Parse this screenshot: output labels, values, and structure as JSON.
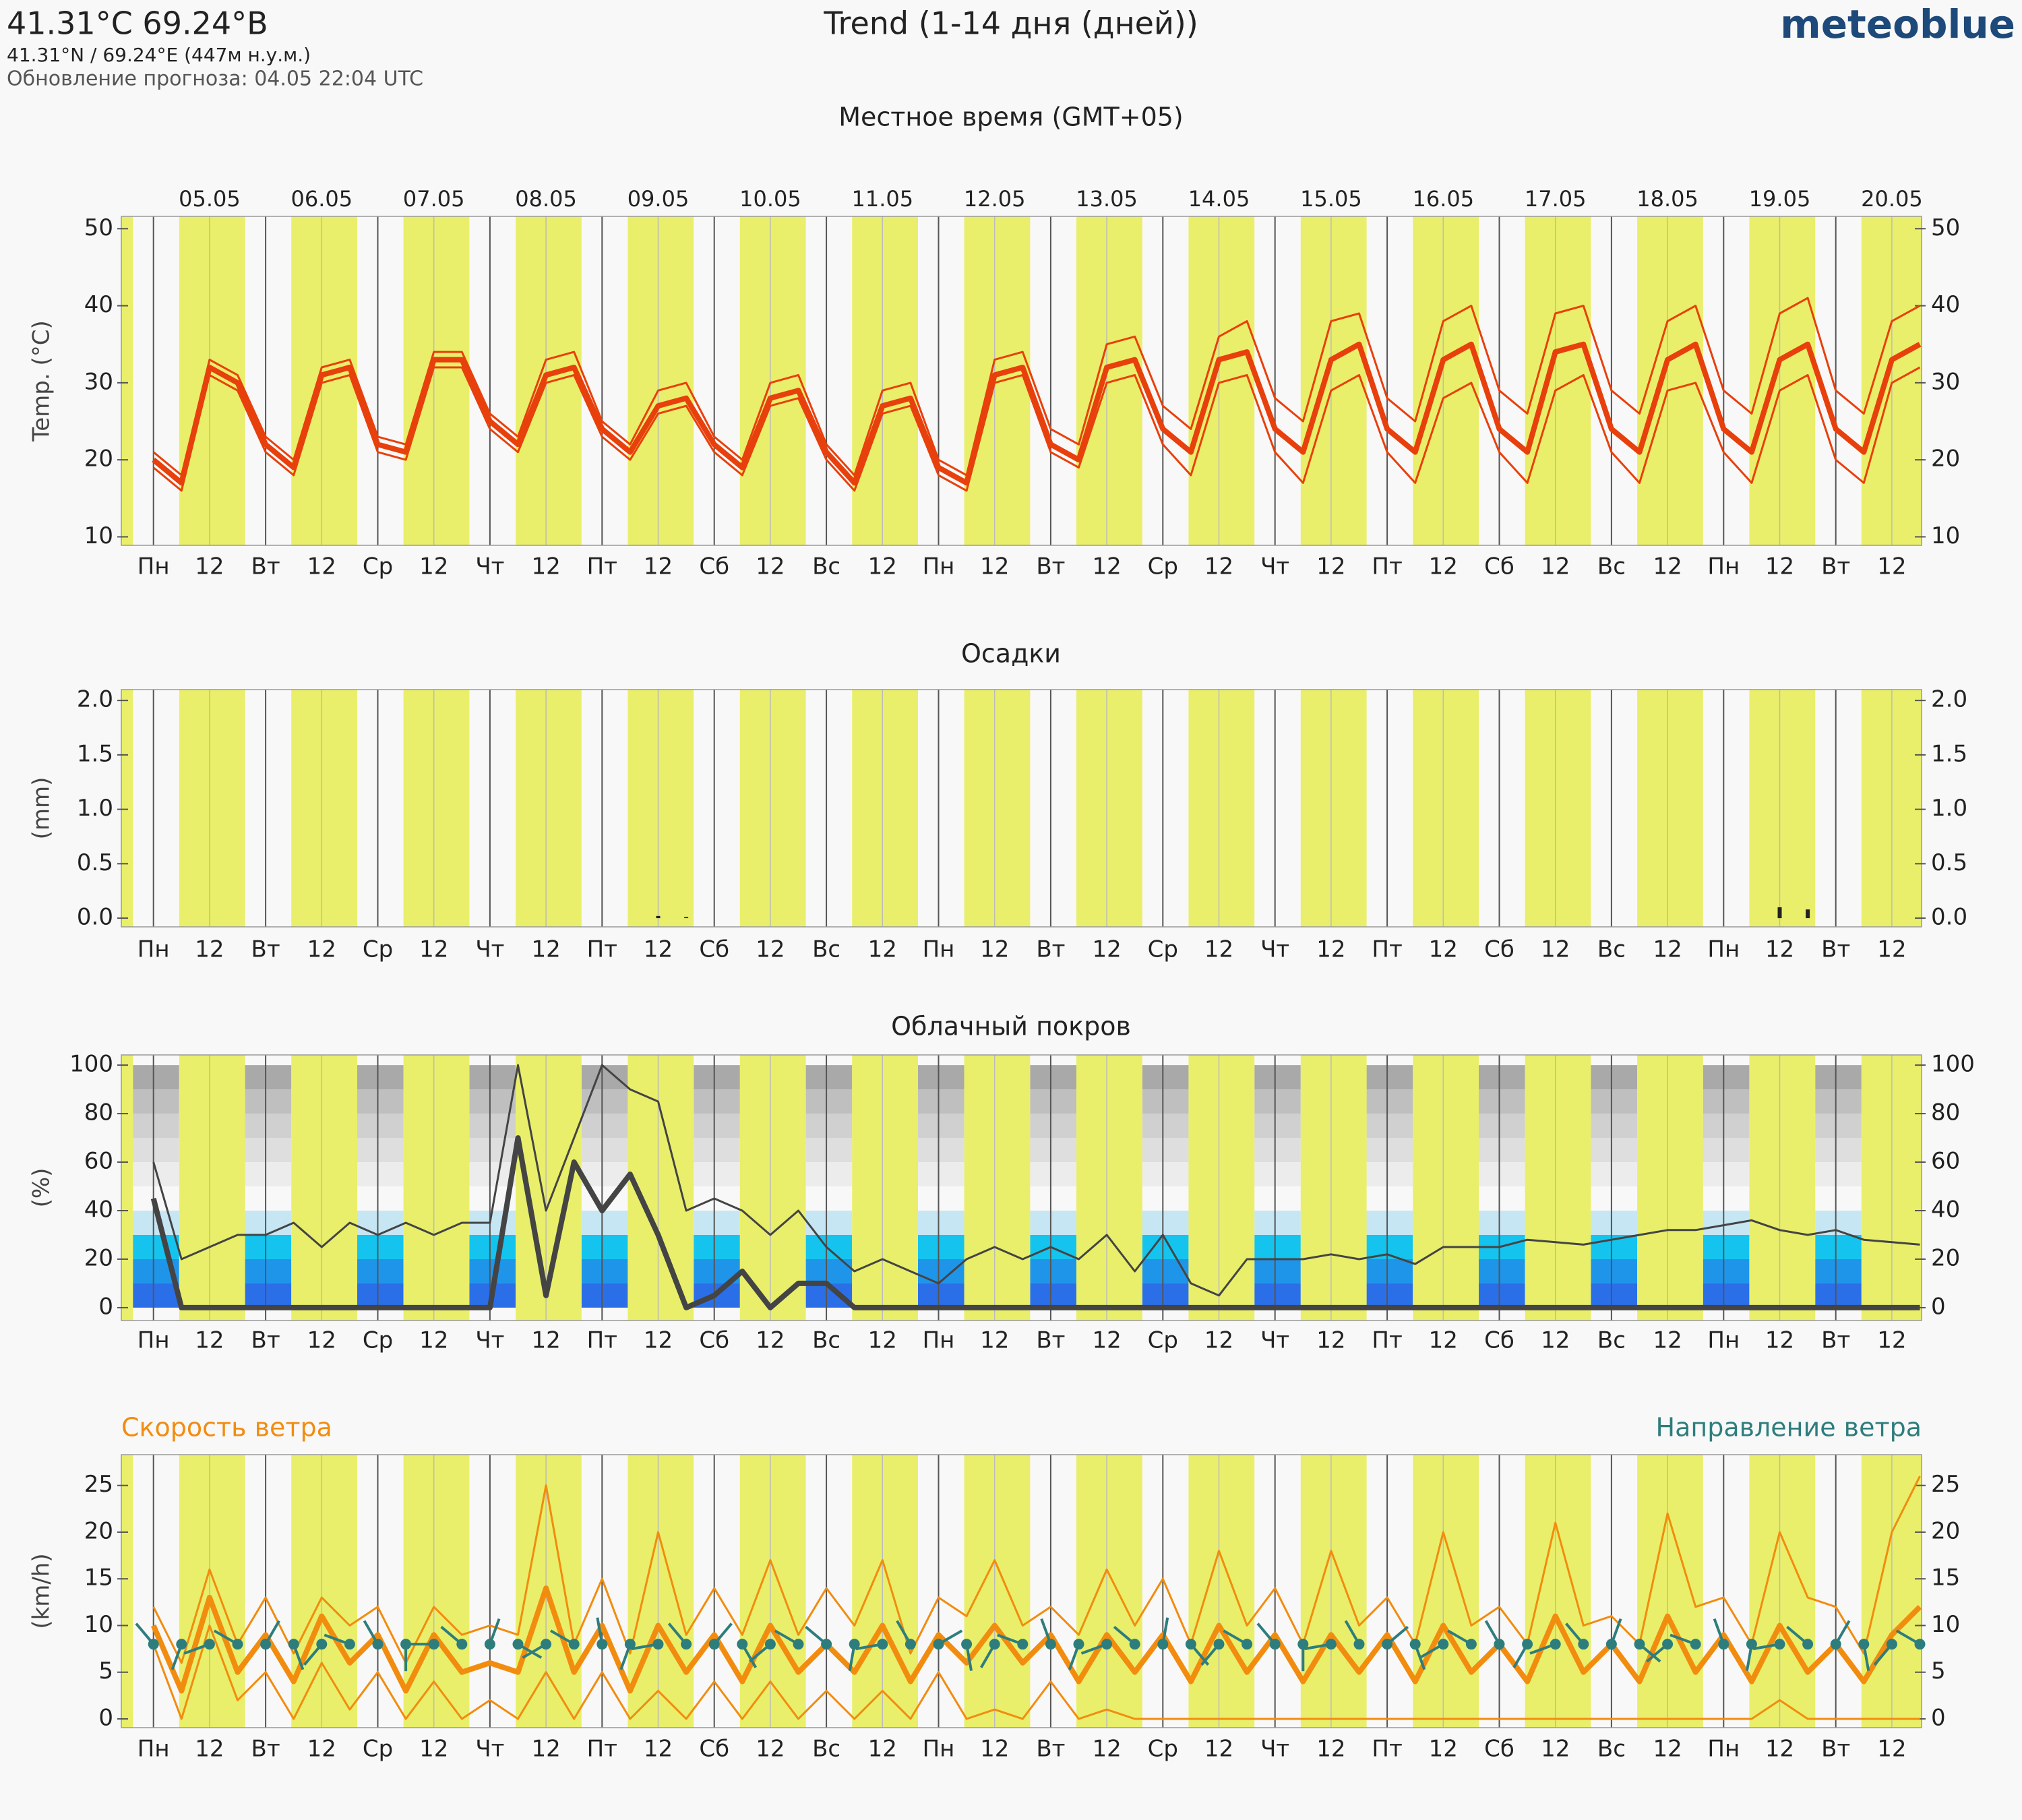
{
  "header": {
    "location": "41.31°С 69.24°В",
    "coords": "41.31°N / 69.24°E (447м н.у.м.)",
    "updated": "Обновление прогноза: 04.05 22:04 UTC",
    "title": "Trend (1-14 дня (дней))",
    "brand": "meteoblue"
  },
  "chart_data": [
    {
      "type": "line",
      "title": "Местное время (GMT+05)",
      "ylabel": "Temp. (°C)",
      "dates": [
        "05.05",
        "06.05",
        "07.05",
        "08.05",
        "09.05",
        "10.05",
        "11.05",
        "12.05",
        "13.05",
        "14.05",
        "15.05",
        "16.05",
        "17.05",
        "18.05",
        "19.05",
        "20.05"
      ],
      "categories": [
        "Пн",
        null,
        "12",
        null,
        "Вт",
        null,
        "12",
        null,
        "Ср",
        null,
        "12",
        null,
        "Чт",
        null,
        "12",
        null,
        "Пт",
        null,
        "12",
        null,
        "Сб",
        null,
        "12",
        null,
        "Вс",
        null,
        "12",
        null,
        "Пн",
        null,
        "12",
        null,
        "Вт",
        null,
        "12",
        null,
        "Ср",
        null,
        "12",
        null,
        "Чт",
        null,
        "12",
        null,
        "Пт",
        null,
        "12",
        null,
        "Сб",
        null,
        "12",
        null,
        "Вс",
        null,
        "12",
        null,
        "Пн",
        null,
        "12",
        null,
        "Вт",
        null,
        "12",
        null
      ],
      "ylim": [
        8.9,
        51.6
      ],
      "yticks": [
        10,
        20,
        30,
        40,
        50
      ],
      "series": [
        {
          "color": "#e8400c",
          "values": [
            20,
            17,
            32,
            30,
            22,
            19,
            31,
            32,
            22,
            21,
            33,
            33,
            25,
            22,
            31,
            32,
            24,
            21,
            27,
            28,
            22,
            19,
            28,
            29,
            21,
            17,
            27,
            28,
            19,
            17,
            31,
            32,
            22,
            20,
            32,
            33,
            24,
            21,
            33,
            34,
            24,
            21,
            33,
            35,
            24,
            21,
            33,
            35,
            24,
            21,
            34,
            35,
            24,
            21,
            33,
            35,
            24,
            21,
            33,
            35,
            24,
            21,
            33,
            35
          ]
        },
        {
          "color": "#e8400c",
          "values": [
            21,
            18,
            33,
            31,
            23,
            20,
            32,
            33,
            23,
            22,
            34,
            34,
            26,
            23,
            33,
            34,
            25,
            22,
            29,
            30,
            23,
            20,
            30,
            31,
            22,
            18,
            29,
            30,
            20,
            18,
            33,
            34,
            24,
            22,
            35,
            36,
            27,
            24,
            36,
            38,
            28,
            25,
            38,
            39,
            28,
            25,
            38,
            40,
            29,
            26,
            39,
            40,
            29,
            26,
            38,
            40,
            29,
            26,
            39,
            41,
            29,
            26,
            38,
            40
          ]
        },
        {
          "color": "#e8400c",
          "values": [
            19,
            16,
            31,
            29,
            21,
            18,
            30,
            31,
            21,
            20,
            32,
            32,
            24,
            21,
            30,
            31,
            23,
            20,
            26,
            27,
            21,
            18,
            27,
            28,
            20,
            16,
            26,
            27,
            18,
            16,
            30,
            31,
            21,
            19,
            30,
            31,
            22,
            18,
            30,
            31,
            21,
            17,
            29,
            31,
            21,
            17,
            28,
            30,
            21,
            17,
            29,
            31,
            21,
            17,
            29,
            30,
            21,
            17,
            29,
            31,
            20,
            17,
            30,
            32
          ]
        }
      ]
    },
    {
      "type": "bar",
      "title": "Осадки",
      "ylabel": "(mm)",
      "color": "#222222",
      "categories": [
        "Пн",
        null,
        "12",
        null,
        "Вт",
        null,
        "12",
        null,
        "Ср",
        null,
        "12",
        null,
        "Чт",
        null,
        "12",
        null,
        "Пт",
        null,
        "12",
        null,
        "Сб",
        null,
        "12",
        null,
        "Вс",
        null,
        "12",
        null,
        "Пн",
        null,
        "12",
        null,
        "Вт",
        null,
        "12",
        null,
        "Ср",
        null,
        "12",
        null,
        "Чт",
        null,
        "12",
        null,
        "Пт",
        null,
        "12",
        null,
        "Сб",
        null,
        "12",
        null,
        "Вс",
        null,
        "12",
        null,
        "Пн",
        null,
        "12",
        null,
        "Вт",
        null,
        "12",
        null
      ],
      "ylim": [
        -0.08,
        2.1
      ],
      "yticks": [
        {
          "value": 0,
          "label": "0.0"
        },
        0.5,
        {
          "value": 1,
          "label": "1.0"
        },
        1.5,
        {
          "value": 2,
          "label": "2.0"
        }
      ],
      "values": [
        0,
        0,
        0,
        0,
        0,
        0,
        0,
        0,
        0,
        0,
        0,
        0,
        0,
        0,
        0,
        0,
        0,
        0,
        0.02,
        0.01,
        0,
        0,
        0,
        0,
        0,
        0,
        0,
        0,
        0,
        0,
        0,
        0,
        0,
        0,
        0,
        0,
        0,
        0,
        0,
        0,
        0,
        0,
        0,
        0,
        0,
        0,
        0,
        0,
        0,
        0,
        0,
        0,
        0,
        0,
        0,
        0,
        0,
        0,
        0.1,
        0.08,
        0,
        0,
        0,
        0
      ]
    },
    {
      "type": "line",
      "title": "Облачный покров",
      "ylabel": "(%)",
      "categories": [
        "Пн",
        null,
        "12",
        null,
        "Вт",
        null,
        "12",
        null,
        "Ср",
        null,
        "12",
        null,
        "Чт",
        null,
        "12",
        null,
        "Пт",
        null,
        "12",
        null,
        "Сб",
        null,
        "12",
        null,
        "Вс",
        null,
        "12",
        null,
        "Пн",
        null,
        "12",
        null,
        "Вт",
        null,
        "12",
        null,
        "Ср",
        null,
        "12",
        null,
        "Чт",
        null,
        "12",
        null,
        "Пт",
        null,
        "12",
        null,
        "Сб",
        null,
        "12",
        null,
        "Вс",
        null,
        "12",
        null,
        "Пн",
        null,
        "12",
        null,
        "Вт",
        null,
        "12",
        null
      ],
      "ylim": [
        -5.3,
        104.2
      ],
      "yticks": [
        0,
        20,
        40,
        60,
        80,
        100
      ],
      "series": [
        {
          "color": "#444444",
          "values": [
            45,
            0,
            0,
            0,
            0,
            0,
            0,
            0,
            0,
            0,
            0,
            0,
            0,
            70,
            5,
            60,
            40,
            55,
            30,
            0,
            5,
            15,
            0,
            10,
            10,
            0,
            0,
            0,
            0,
            0,
            0,
            0,
            0,
            0,
            0,
            0,
            0,
            0,
            0,
            0,
            0,
            0,
            0,
            0,
            0,
            0,
            0,
            0,
            0,
            0,
            0,
            0,
            0,
            0,
            0,
            0,
            0,
            0,
            0,
            0,
            0,
            0,
            0,
            0
          ]
        },
        {
          "color": "#444444",
          "values": [
            60,
            20,
            25,
            30,
            30,
            35,
            25,
            35,
            30,
            35,
            30,
            35,
            35,
            100,
            40,
            70,
            100,
            90,
            85,
            40,
            45,
            40,
            30,
            40,
            25,
            15,
            20,
            15,
            10,
            20,
            25,
            20,
            25,
            20,
            30,
            15,
            30,
            10,
            5,
            20,
            20,
            20,
            22,
            20,
            22,
            18,
            25,
            25,
            25,
            28,
            27,
            26,
            28,
            30,
            32,
            32,
            34,
            36,
            32,
            30,
            32,
            28,
            27,
            26
          ]
        }
      ]
    },
    {
      "type": "line",
      "ylabel": "(km/h)",
      "speed_label": "Скорость ветра",
      "direction_label": "Направление ветра",
      "direction_color": "#2e7d7d",
      "categories": [
        "Пн",
        null,
        "12",
        null,
        "Вт",
        null,
        "12",
        null,
        "Ср",
        null,
        "12",
        null,
        "Чт",
        null,
        "12",
        null,
        "Пт",
        null,
        "12",
        null,
        "Сб",
        null,
        "12",
        null,
        "Вс",
        null,
        "12",
        null,
        "Пн",
        null,
        "12",
        null,
        "Вт",
        null,
        "12",
        null,
        "Ср",
        null,
        "12",
        null,
        "Чт",
        null,
        "12",
        null,
        "Пт",
        null,
        "12",
        null,
        "Сб",
        null,
        "12",
        null,
        "Вс",
        null,
        "12",
        null,
        "Пн",
        null,
        "12",
        null,
        "Вт",
        null,
        "12",
        null
      ],
      "ylim": [
        -0.94,
        28.3
      ],
      "yticks": [
        0,
        5,
        10,
        15,
        20,
        25
      ],
      "series": [
        {
          "color": "#f28c0f",
          "values": [
            10,
            3,
            13,
            5,
            9,
            4,
            11,
            6,
            9,
            3,
            9,
            5,
            6,
            5,
            14,
            5,
            10,
            3,
            10,
            5,
            9,
            4,
            10,
            5,
            8,
            5,
            10,
            4,
            9,
            6,
            10,
            6,
            9,
            4,
            9,
            5,
            9,
            4,
            10,
            5,
            9,
            4,
            9,
            5,
            9,
            4,
            10,
            5,
            8,
            4,
            11,
            5,
            8,
            4,
            11,
            5,
            9,
            4,
            10,
            5,
            8,
            4,
            9,
            12
          ]
        },
        {
          "color": "#f28c0f",
          "values": [
            12,
            6,
            16,
            8,
            13,
            7,
            13,
            10,
            12,
            6,
            12,
            9,
            10,
            9,
            25,
            8,
            15,
            7,
            20,
            9,
            14,
            9,
            17,
            9,
            14,
            10,
            17,
            7,
            13,
            11,
            17,
            10,
            12,
            9,
            16,
            10,
            15,
            8,
            18,
            10,
            14,
            8,
            18,
            10,
            13,
            8,
            20,
            10,
            12,
            8,
            21,
            10,
            11,
            8,
            22,
            12,
            13,
            8,
            20,
            13,
            12,
            7,
            20,
            26
          ]
        },
        {
          "color": "#f28c0f",
          "values": [
            8,
            0,
            10,
            2,
            5,
            0,
            6,
            1,
            5,
            0,
            4,
            0,
            2,
            0,
            5,
            0,
            5,
            0,
            3,
            0,
            4,
            0,
            4,
            0,
            3,
            0,
            3,
            0,
            5,
            0,
            1,
            0,
            4,
            0,
            1,
            0,
            0,
            0,
            0,
            0,
            0,
            0,
            0,
            0,
            0,
            0,
            0,
            0,
            0,
            0,
            0,
            0,
            0,
            0,
            0,
            0,
            0,
            0,
            2,
            0,
            0,
            0,
            0,
            0
          ]
        }
      ],
      "direction_level": 8,
      "directions": [
        320,
        200,
        250,
        300,
        30,
        160,
        220,
        290,
        330,
        180,
        270,
        310,
        20,
        120,
        240,
        300,
        350,
        200,
        260,
        320,
        40,
        150,
        230,
        300,
        310,
        190,
        260,
        330,
        60,
        170,
        210,
        290,
        340,
        200,
        250,
        310,
        10,
        140,
        220,
        300,
        320,
        180,
        260,
        330,
        50,
        160,
        240,
        300,
        330,
        210,
        250,
        320,
        20,
        130,
        230,
        290,
        340,
        190,
        260,
        310,
        30,
        170,
        220,
        300
      ]
    }
  ]
}
